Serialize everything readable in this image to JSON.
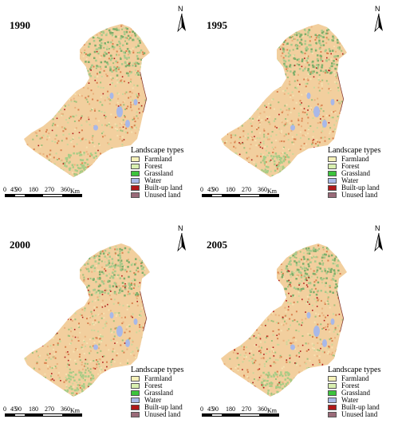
{
  "panels": [
    {
      "year": "1990"
    },
    {
      "year": "1995"
    },
    {
      "year": "2000"
    },
    {
      "year": "2005"
    }
  ],
  "north_label": "N",
  "legend": {
    "title": "Landscape types",
    "items": [
      {
        "label": "Farmland",
        "color": "#f5f0b8"
      },
      {
        "label": "Forest",
        "color": "#d9f0b0"
      },
      {
        "label": "Grassland",
        "color": "#3cc43c"
      },
      {
        "label": "Water",
        "color": "#a8b8e8"
      },
      {
        "label": "Built-up land",
        "color": "#b01818"
      },
      {
        "label": "Unused land",
        "color": "#9a6a78"
      }
    ]
  },
  "scale": {
    "ticks": [
      "0",
      "45",
      "90",
      "180",
      "270",
      "360"
    ],
    "unit": "Km"
  }
}
